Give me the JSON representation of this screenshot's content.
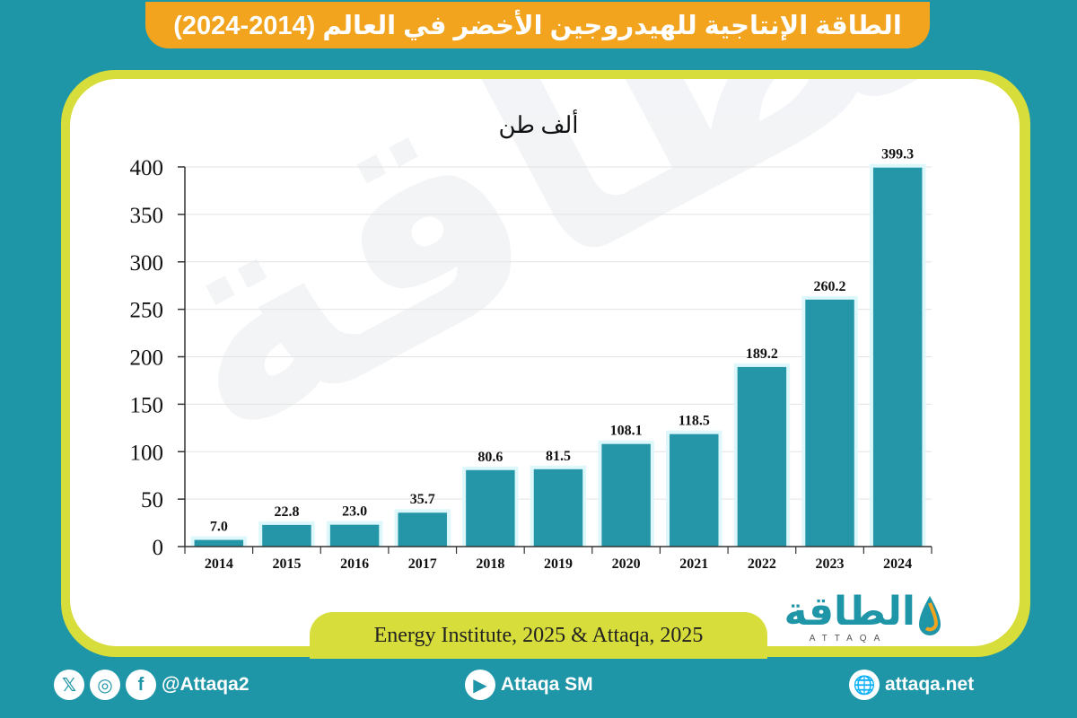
{
  "title": "الطاقة الإنتاجية للهيدروجين الأخضر في العالم (2014-2024)",
  "source": "Energy Institute, 2025 & Attaqa, 2025",
  "logo": {
    "arabic": "الطاقة",
    "latin": "ATTAQA"
  },
  "footer": {
    "social_handle": "@Attaqa2",
    "youtube": "Attaqa SM",
    "website": "attaqa.net",
    "icons": [
      "x-icon",
      "instagram-icon",
      "facebook-icon",
      "youtube-icon",
      "globe-icon"
    ]
  },
  "colors": {
    "background": "#1f96a8",
    "banner": "#f2a41f",
    "frame": "#d7dd3a",
    "bar": "#2596a8",
    "bar_glow": "#ddf7fa"
  },
  "chart_data": {
    "type": "bar",
    "ylabel": "ألف طن",
    "categories": [
      "2014",
      "2015",
      "2016",
      "2017",
      "2018",
      "2019",
      "2020",
      "2021",
      "2022",
      "2023",
      "2024"
    ],
    "values": [
      7.0,
      22.8,
      23.0,
      35.7,
      80.6,
      81.5,
      108.1,
      118.5,
      189.2,
      260.2,
      399.3
    ],
    "value_labels": [
      "7.0",
      "22.8",
      "23.0",
      "35.7",
      "80.6",
      "81.5",
      "108.1",
      "118.5",
      "189.2",
      "260.2",
      "399.3"
    ],
    "ylim": [
      0,
      400
    ],
    "yticks": [
      0,
      50,
      100,
      150,
      200,
      250,
      300,
      350,
      400
    ],
    "grid": true
  }
}
